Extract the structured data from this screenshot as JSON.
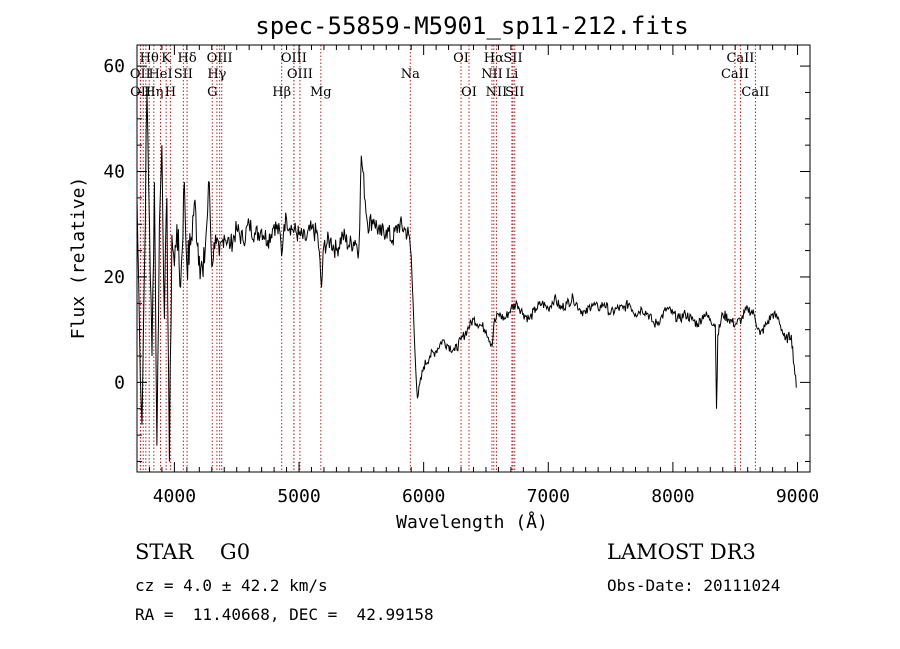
{
  "chart_data": {
    "type": "line",
    "title": "spec-55859-M5901_sp11-212.fits",
    "xlabel": "Wavelength (Å)",
    "ylabel": "Flux (relative)",
    "xlim": [
      3700,
      9100
    ],
    "ylim": [
      -17,
      64
    ],
    "xticks": [
      4000,
      5000,
      6000,
      7000,
      8000,
      9000
    ],
    "yticks": [
      0,
      20,
      40,
      60
    ],
    "series": [
      {
        "name": "flux",
        "x": [
          3700,
          3720,
          3740,
          3760,
          3780,
          3800,
          3820,
          3840,
          3860,
          3880,
          3900,
          3920,
          3940,
          3960,
          3980,
          4000,
          4020,
          4050,
          4080,
          4100,
          4130,
          4160,
          4200,
          4230,
          4260,
          4280,
          4300,
          4330,
          4360,
          4400,
          4450,
          4500,
          4550,
          4600,
          4650,
          4700,
          4750,
          4800,
          4850,
          4860,
          4880,
          4900,
          4950,
          5000,
          5050,
          5100,
          5150,
          5180,
          5200,
          5250,
          5300,
          5350,
          5400,
          5450,
          5480,
          5500,
          5550,
          5600,
          5650,
          5700,
          5750,
          5800,
          5850,
          5880,
          5900,
          5910,
          5920,
          5930,
          5950,
          6000,
          6050,
          6100,
          6150,
          6200,
          6250,
          6300,
          6350,
          6400,
          6450,
          6500,
          6550,
          6563,
          6600,
          6650,
          6700,
          6750,
          6800,
          6850,
          6900,
          6950,
          7000,
          7050,
          7100,
          7150,
          7200,
          7250,
          7300,
          7350,
          7400,
          7450,
          7500,
          7550,
          7600,
          7650,
          7700,
          7750,
          7800,
          7850,
          7900,
          7950,
          8000,
          8050,
          8100,
          8150,
          8200,
          8250,
          8300,
          8340,
          8350,
          8360,
          8400,
          8450,
          8500,
          8550,
          8600,
          8650,
          8700,
          8750,
          8800,
          8850,
          8900,
          8950,
          8990
        ],
        "y": [
          35,
          10,
          -8,
          22,
          55,
          30,
          5,
          38,
          -12,
          30,
          45,
          12,
          35,
          -15,
          28,
          22,
          30,
          18,
          38,
          22,
          26,
          34,
          24,
          20,
          30,
          38,
          22,
          28,
          24,
          28,
          26,
          29,
          27,
          30,
          28,
          29,
          27,
          30,
          28,
          24,
          30,
          31,
          29,
          28,
          27,
          29,
          28,
          18,
          26,
          27,
          25,
          28,
          26,
          27,
          25,
          43,
          30,
          31,
          28,
          29,
          27,
          30,
          29,
          28,
          24,
          18,
          12,
          6,
          -3,
          3,
          5,
          6,
          8,
          7,
          6,
          8,
          10,
          12,
          11,
          10,
          7,
          11,
          13,
          12,
          14,
          15,
          13,
          12,
          14,
          15,
          14,
          16,
          14,
          15,
          16,
          14,
          13,
          15,
          14,
          15,
          13,
          14,
          14,
          15,
          13,
          14,
          13,
          11,
          12,
          14,
          13,
          12,
          13,
          12,
          11,
          13,
          12,
          11,
          -5,
          9,
          13,
          12,
          11,
          12,
          14,
          13,
          9,
          11,
          13,
          12,
          8,
          9,
          -1
        ]
      }
    ],
    "lines_top": [
      {
        "label": "Hθ",
        "wave": 3798
      },
      {
        "label": "K",
        "wave": 3934
      },
      {
        "label": "Hδ",
        "wave": 4102
      },
      {
        "label": "OIII",
        "wave": 4363
      },
      {
        "label": "OIII",
        "wave": 4959
      },
      {
        "label": "OI",
        "wave": 6300
      },
      {
        "label": "Hα",
        "wave": 6563
      },
      {
        "label": "SII",
        "wave": 6717
      },
      {
        "label": "CaII",
        "wave": 8542
      }
    ],
    "lines_mid": [
      {
        "label": "OII",
        "wave": 3727
      },
      {
        "label": "HeI",
        "wave": 3889
      },
      {
        "label": "SII",
        "wave": 4072
      },
      {
        "label": "Hγ",
        "wave": 4341
      },
      {
        "label": "OIII",
        "wave": 5007
      },
      {
        "label": "Na",
        "wave": 5893
      },
      {
        "label": "NII",
        "wave": 6548
      },
      {
        "label": "Li",
        "wave": 6708
      },
      {
        "label": "CaII",
        "wave": 8498
      }
    ],
    "lines_bot": [
      {
        "label": "OII",
        "wave": 3729
      },
      {
        "label": "Hη",
        "wave": 3835
      },
      {
        "label": "H",
        "wave": 3968
      },
      {
        "label": "G",
        "wave": 4304
      },
      {
        "label": "Hβ",
        "wave": 4861
      },
      {
        "label": "Mg",
        "wave": 5175
      },
      {
        "label": "OI",
        "wave": 6364
      },
      {
        "label": "NII",
        "wave": 6584
      },
      {
        "label": "SII",
        "wave": 6731
      },
      {
        "label": "CaII",
        "wave": 8662
      }
    ],
    "extra_lines": [
      3750,
      3771,
      3889,
      4380,
      4959
    ]
  },
  "info": {
    "class": "STAR    G0",
    "survey": "LAMOST DR3",
    "cz": "cz = 4.0 ± 42.2 km/s",
    "obs_date": "Obs-Date: 20111024",
    "radec": "RA =  11.40668, DEC =  42.99158"
  },
  "colors": {
    "axis": "#000000",
    "spectrum": "#000000",
    "line_marker": "#b22222"
  }
}
